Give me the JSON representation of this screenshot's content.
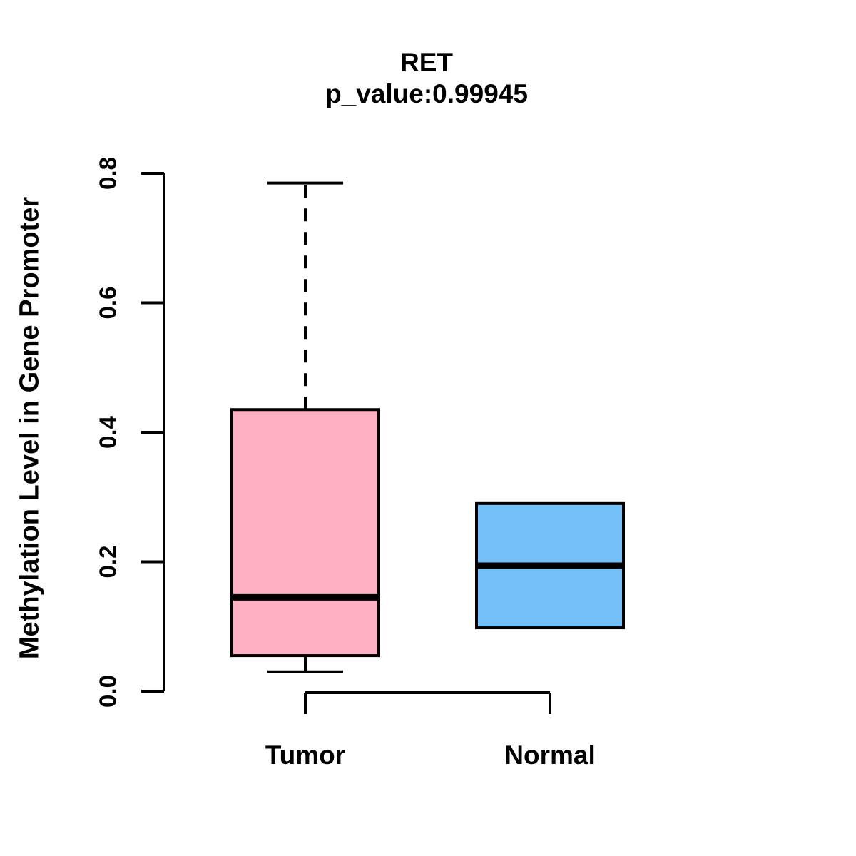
{
  "chart_data": {
    "type": "boxplot",
    "title": "RET",
    "subtitle": "p_value:0.99945",
    "ylabel": "Methylation Level in Gene Promoter",
    "xlabel": "",
    "ylim": [
      0,
      0.8
    ],
    "grid": false,
    "legend": "none",
    "yticks": [
      {
        "value": 0.0,
        "label": "0.0"
      },
      {
        "value": 0.2,
        "label": "0.2"
      },
      {
        "value": 0.4,
        "label": "0.4"
      },
      {
        "value": 0.6,
        "label": "0.6"
      },
      {
        "value": 0.8,
        "label": "0.8"
      }
    ],
    "groups": [
      {
        "name": "Tumor",
        "color": "#FFB1C3",
        "whisker_low": 0.03,
        "q1": 0.055,
        "median": 0.145,
        "q3": 0.435,
        "whisker_high": 0.785
      },
      {
        "name": "Normal",
        "color": "#73BFF8",
        "whisker_low": null,
        "q1": 0.098,
        "median": 0.194,
        "q3": 0.29,
        "whisker_high": null
      }
    ],
    "comparison_bracket": {
      "from": "Tumor",
      "to": "Normal"
    },
    "colors": {
      "box_border": "#000000",
      "median_line": "#000000",
      "axis": "#000000",
      "text": "#000000",
      "background": "#FFFFFF"
    }
  }
}
